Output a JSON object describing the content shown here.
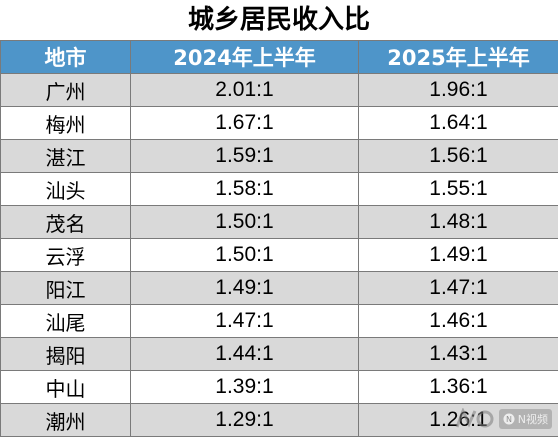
{
  "title": "城乡居民收入比",
  "chart_data": {
    "type": "table",
    "columns": [
      "地市",
      "2024年上半年",
      "2025年上半年"
    ],
    "rows": [
      [
        "广州",
        "2.01:1",
        "1.96:1"
      ],
      [
        "梅州",
        "1.67:1",
        "1.64:1"
      ],
      [
        "湛江",
        "1.59:1",
        "1.56:1"
      ],
      [
        "汕头",
        "1.58:1",
        "1.55:1"
      ],
      [
        "茂名",
        "1.50:1",
        "1.48:1"
      ],
      [
        "云浮",
        "1.50:1",
        "1.49:1"
      ],
      [
        "阳江",
        "1.49:1",
        "1.47:1"
      ],
      [
        "汕尾",
        "1.47:1",
        "1.46:1"
      ],
      [
        "揭阳",
        "1.44:1",
        "1.43:1"
      ],
      [
        "中山",
        "1.39:1",
        "1.36:1"
      ],
      [
        "潮州",
        "1.29:1",
        "1.26:1"
      ]
    ]
  },
  "colors": {
    "header_bg": "#4e95c9",
    "header_text": "#ffffff",
    "row_odd_bg": "#d9d9d9",
    "row_even_bg": "#ffffff",
    "border": "#7a7a7a"
  },
  "watermark": {
    "logo_icon": "nc-logo-icon",
    "badge_icon": "n-video-icon",
    "badge_text": "N视频"
  }
}
